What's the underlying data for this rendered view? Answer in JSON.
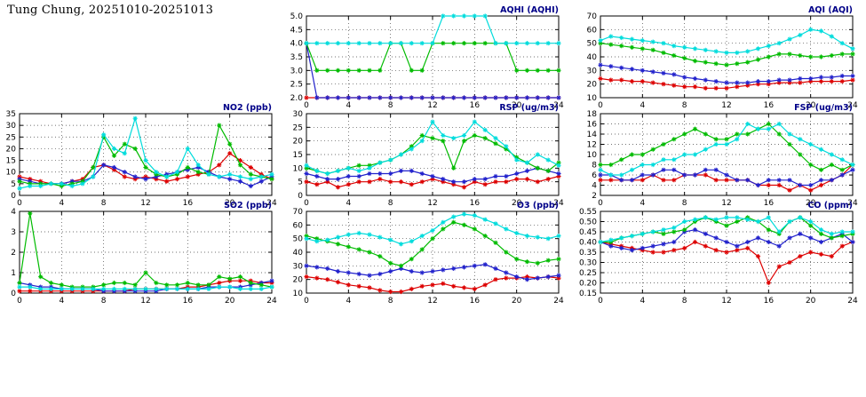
{
  "page_title": "Tung Chung, 20251010-20251013",
  "colors": {
    "cyan": "#00dcdc",
    "green": "#00bb00",
    "blue": "#2222cc",
    "red": "#dd0000",
    "chart_title": "#000088",
    "grid": "#444444",
    "axis": "#000000"
  },
  "x_axis": {
    "min": 0,
    "max": 24,
    "ticks": [
      0,
      4,
      8,
      12,
      16,
      20,
      24
    ]
  },
  "chart_data": [
    {
      "id": "aqhi",
      "type": "line",
      "title": "AQHI (AQHI)",
      "ylim": [
        2.0,
        5.0
      ],
      "ytick_step": 0.5,
      "ydecimals": 1,
      "series": [
        {
          "name": "red",
          "values": [
            2,
            2,
            2,
            2,
            2,
            2,
            2,
            2,
            2,
            2,
            2,
            2,
            2,
            2,
            2,
            2,
            2,
            2,
            2,
            2,
            2,
            2,
            2,
            2,
            2
          ]
        },
        {
          "name": "blue",
          "values": [
            4,
            2,
            2,
            2,
            2,
            2,
            2,
            2,
            2,
            2,
            2,
            2,
            2,
            2,
            2,
            2,
            2,
            2,
            2,
            2,
            2,
            2,
            2,
            2,
            2
          ]
        },
        {
          "name": "green",
          "values": [
            4,
            3,
            3,
            3,
            3,
            3,
            3,
            3,
            4,
            4,
            3,
            3,
            4,
            4,
            4,
            4,
            4,
            4,
            4,
            4,
            3,
            3,
            3,
            3,
            3
          ]
        },
        {
          "name": "cyan",
          "values": [
            4,
            4,
            4,
            4,
            4,
            4,
            4,
            4,
            4,
            4,
            4,
            4,
            4,
            5,
            5,
            5,
            5,
            5,
            4,
            4,
            4,
            4,
            4,
            4,
            4
          ]
        }
      ]
    },
    {
      "id": "aqi",
      "type": "line",
      "title": "AQI (AQI)",
      "ylim": [
        10,
        70
      ],
      "ytick_step": 10,
      "ydecimals": 0,
      "series": [
        {
          "name": "red",
          "values": [
            24,
            23,
            23,
            22,
            22,
            21,
            20,
            19,
            18,
            18,
            17,
            17,
            17,
            18,
            19,
            20,
            20,
            21,
            21,
            21,
            22,
            22,
            22,
            22,
            23
          ]
        },
        {
          "name": "blue",
          "values": [
            34,
            33,
            32,
            31,
            30,
            29,
            28,
            27,
            25,
            24,
            23,
            22,
            21,
            21,
            21,
            22,
            22,
            23,
            23,
            24,
            24,
            25,
            25,
            26,
            26
          ]
        },
        {
          "name": "green",
          "values": [
            50,
            49,
            48,
            47,
            46,
            45,
            43,
            41,
            39,
            37,
            36,
            35,
            34,
            35,
            36,
            38,
            40,
            42,
            42,
            41,
            40,
            40,
            41,
            42,
            42
          ]
        },
        {
          "name": "cyan",
          "values": [
            52,
            55,
            54,
            53,
            52,
            51,
            50,
            48,
            47,
            46,
            45,
            44,
            43,
            43,
            44,
            46,
            48,
            50,
            53,
            56,
            60,
            59,
            55,
            50,
            46
          ]
        }
      ]
    },
    {
      "id": "no2",
      "type": "line",
      "title": "NO2 (ppb)",
      "ylim": [
        0,
        35
      ],
      "ytick_step": 5,
      "ydecimals": 0,
      "series": [
        {
          "name": "red",
          "values": [
            8,
            7,
            6,
            5,
            5,
            6,
            7,
            12,
            13,
            11,
            8,
            7,
            8,
            7,
            6,
            7,
            8,
            9,
            10,
            13,
            18,
            15,
            12,
            9,
            7
          ]
        },
        {
          "name": "blue",
          "values": [
            7,
            6,
            5,
            5,
            5,
            6,
            6,
            8,
            13,
            12,
            10,
            8,
            7,
            8,
            9,
            10,
            11,
            12,
            10,
            8,
            7,
            6,
            4,
            6,
            8
          ]
        },
        {
          "name": "green",
          "values": [
            6,
            5,
            5,
            5,
            4,
            5,
            6,
            12,
            25,
            17,
            22,
            20,
            12,
            9,
            8,
            9,
            12,
            10,
            9,
            30,
            22,
            13,
            9,
            8,
            7
          ]
        },
        {
          "name": "cyan",
          "values": [
            3,
            4,
            4,
            5,
            5,
            4,
            5,
            8,
            26,
            20,
            18,
            33,
            15,
            10,
            8,
            10,
            20,
            13,
            9,
            8,
            9,
            8,
            7,
            8,
            9
          ]
        }
      ]
    },
    {
      "id": "rsp",
      "type": "line",
      "title": "RSP (ug/m3)",
      "ylim": [
        0,
        30
      ],
      "ytick_step": 5,
      "ydecimals": 0,
      "series": [
        {
          "name": "red",
          "values": [
            5,
            4,
            5,
            3,
            4,
            5,
            5,
            6,
            5,
            5,
            4,
            5,
            6,
            5,
            4,
            3,
            5,
            4,
            5,
            5,
            6,
            6,
            5,
            6,
            7
          ]
        },
        {
          "name": "blue",
          "values": [
            8,
            7,
            6,
            6,
            7,
            7,
            8,
            8,
            8,
            9,
            9,
            8,
            7,
            6,
            5,
            5,
            6,
            6,
            7,
            7,
            8,
            9,
            10,
            9,
            8
          ]
        },
        {
          "name": "green",
          "values": [
            10,
            9,
            8,
            9,
            10,
            11,
            11,
            12,
            13,
            15,
            18,
            22,
            21,
            20,
            10,
            20,
            22,
            21,
            19,
            17,
            14,
            12,
            10,
            9,
            12
          ]
        },
        {
          "name": "cyan",
          "values": [
            11,
            9,
            8,
            9,
            10,
            9,
            10,
            12,
            13,
            15,
            17,
            20,
            27,
            22,
            21,
            22,
            27,
            24,
            21,
            18,
            13,
            12,
            15,
            13,
            11
          ]
        }
      ]
    },
    {
      "id": "fsp",
      "type": "line",
      "title": "FSP (ug/m3)",
      "ylim": [
        2,
        18
      ],
      "ytick_step": 2,
      "ydecimals": 0,
      "series": [
        {
          "name": "red",
          "values": [
            5,
            5,
            5,
            5,
            5,
            6,
            5,
            5,
            6,
            6,
            6,
            5,
            5,
            5,
            5,
            4,
            4,
            4,
            3,
            4,
            3,
            4,
            5,
            6,
            8
          ]
        },
        {
          "name": "blue",
          "values": [
            6,
            6,
            5,
            5,
            6,
            6,
            7,
            7,
            6,
            6,
            7,
            7,
            6,
            5,
            5,
            4,
            5,
            5,
            5,
            4,
            4,
            5,
            5,
            6,
            7
          ]
        },
        {
          "name": "green",
          "values": [
            8,
            8,
            9,
            10,
            10,
            11,
            12,
            13,
            14,
            15,
            14,
            13,
            13,
            14,
            14,
            15,
            16,
            14,
            12,
            10,
            8,
            7,
            8,
            7,
            8
          ]
        },
        {
          "name": "cyan",
          "values": [
            7,
            6,
            6,
            7,
            8,
            8,
            9,
            9,
            10,
            10,
            11,
            12,
            12,
            13,
            16,
            15,
            15,
            16,
            14,
            13,
            12,
            11,
            10,
            9,
            8
          ]
        }
      ]
    },
    {
      "id": "so2",
      "type": "line",
      "title": "SO2 (ppb)",
      "ylim": [
        0,
        4
      ],
      "ytick_step": 1,
      "ydecimals": 0,
      "series": [
        {
          "name": "red",
          "values": [
            0.1,
            0.1,
            0.1,
            0.1,
            0.1,
            0.1,
            0.1,
            0.1,
            0.1,
            0.1,
            0.1,
            0.2,
            0.2,
            0.2,
            0.2,
            0.2,
            0.3,
            0.3,
            0.4,
            0.5,
            0.6,
            0.6,
            0.6,
            0.5,
            0.5
          ]
        },
        {
          "name": "blue",
          "values": [
            0.5,
            0.4,
            0.3,
            0.3,
            0.2,
            0.2,
            0.2,
            0.2,
            0.1,
            0.1,
            0.1,
            0.1,
            0.1,
            0.1,
            0.2,
            0.2,
            0.2,
            0.2,
            0.3,
            0.3,
            0.3,
            0.3,
            0.4,
            0.5,
            0.6
          ]
        },
        {
          "name": "green",
          "values": [
            0.5,
            3.9,
            0.8,
            0.5,
            0.4,
            0.3,
            0.3,
            0.3,
            0.4,
            0.5,
            0.5,
            0.4,
            1.0,
            0.5,
            0.4,
            0.4,
            0.5,
            0.4,
            0.4,
            0.8,
            0.7,
            0.8,
            0.5,
            0.4,
            0.3
          ]
        },
        {
          "name": "cyan",
          "values": [
            0.3,
            0.3,
            0.2,
            0.2,
            0.2,
            0.2,
            0.2,
            0.2,
            0.2,
            0.2,
            0.2,
            0.2,
            0.2,
            0.2,
            0.2,
            0.2,
            0.2,
            0.2,
            0.2,
            0.3,
            0.3,
            0.2,
            0.2,
            0.2,
            0.3
          ]
        }
      ]
    },
    {
      "id": "o3",
      "type": "line",
      "title": "O3 (ppb)",
      "ylim": [
        10,
        70
      ],
      "ytick_step": 10,
      "ydecimals": 0,
      "series": [
        {
          "name": "red",
          "values": [
            22,
            21,
            20,
            18,
            16,
            15,
            14,
            12,
            11,
            11,
            13,
            15,
            16,
            17,
            15,
            14,
            13,
            16,
            20,
            21,
            21,
            22,
            21,
            22,
            21
          ]
        },
        {
          "name": "blue",
          "values": [
            30,
            29,
            28,
            26,
            25,
            24,
            23,
            24,
            26,
            28,
            26,
            25,
            26,
            27,
            28,
            29,
            30,
            31,
            28,
            25,
            22,
            20,
            21,
            22,
            23
          ]
        },
        {
          "name": "green",
          "values": [
            52,
            50,
            48,
            46,
            44,
            42,
            40,
            37,
            32,
            30,
            35,
            42,
            50,
            57,
            62,
            60,
            57,
            52,
            47,
            40,
            35,
            33,
            32,
            34,
            35
          ]
        },
        {
          "name": "cyan",
          "values": [
            50,
            48,
            49,
            51,
            53,
            54,
            53,
            51,
            49,
            46,
            48,
            52,
            56,
            62,
            66,
            68,
            67,
            64,
            61,
            57,
            54,
            52,
            51,
            50,
            52
          ]
        }
      ]
    },
    {
      "id": "co",
      "type": "line",
      "title": "CO (ppm)",
      "ylim": [
        0.15,
        0.55
      ],
      "ytick_step": 0.05,
      "ydecimals": 2,
      "series": [
        {
          "name": "red",
          "values": [
            0.4,
            0.39,
            0.38,
            0.37,
            0.36,
            0.35,
            0.35,
            0.36,
            0.37,
            0.4,
            0.38,
            0.36,
            0.35,
            0.36,
            0.37,
            0.33,
            0.2,
            0.28,
            0.3,
            0.33,
            0.35,
            0.34,
            0.33,
            0.38,
            0.4
          ]
        },
        {
          "name": "blue",
          "values": [
            0.4,
            0.38,
            0.37,
            0.36,
            0.37,
            0.38,
            0.39,
            0.4,
            0.45,
            0.46,
            0.44,
            0.42,
            0.4,
            0.38,
            0.4,
            0.42,
            0.4,
            0.38,
            0.42,
            0.44,
            0.42,
            0.4,
            0.42,
            0.44,
            0.4
          ]
        },
        {
          "name": "green",
          "values": [
            0.4,
            0.4,
            0.42,
            0.43,
            0.44,
            0.45,
            0.44,
            0.45,
            0.46,
            0.5,
            0.52,
            0.5,
            0.48,
            0.5,
            0.52,
            0.5,
            0.46,
            0.44,
            0.5,
            0.52,
            0.48,
            0.44,
            0.42,
            0.43,
            0.44
          ]
        },
        {
          "name": "cyan",
          "values": [
            0.4,
            0.41,
            0.42,
            0.43,
            0.44,
            0.45,
            0.46,
            0.47,
            0.5,
            0.51,
            0.52,
            0.51,
            0.52,
            0.52,
            0.51,
            0.5,
            0.52,
            0.45,
            0.5,
            0.52,
            0.5,
            0.46,
            0.44,
            0.45,
            0.45
          ]
        }
      ]
    }
  ]
}
